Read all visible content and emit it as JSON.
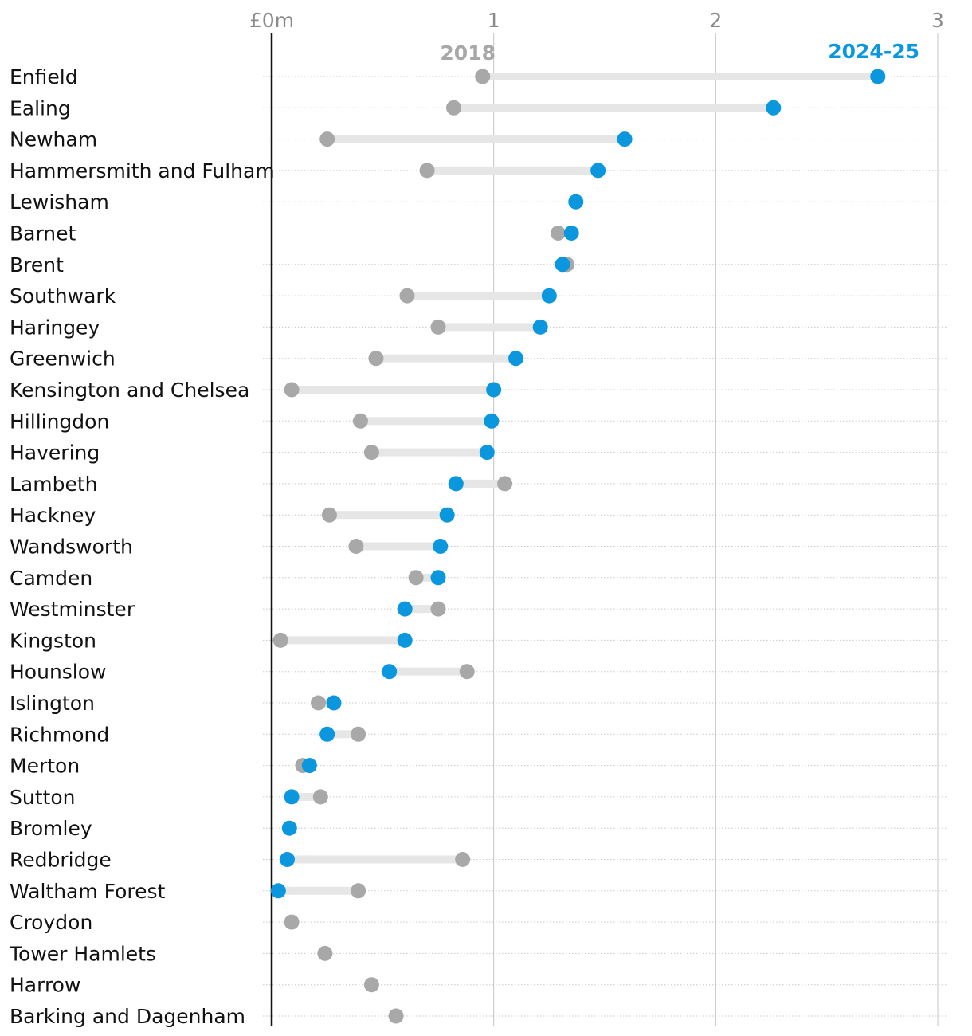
{
  "chart_data": {
    "type": "dumbbell",
    "xlim": [
      0,
      3
    ],
    "x_ticks": [
      {
        "value": 0,
        "label": "£0m"
      },
      {
        "value": 1,
        "label": "1"
      },
      {
        "value": 2,
        "label": "2"
      },
      {
        "value": 3,
        "label": "3"
      }
    ],
    "series": [
      {
        "name": "2018",
        "color": "#a8a8a8"
      },
      {
        "name": "2024-25",
        "color": "#0b97dd"
      }
    ],
    "categories": [
      "Enfield",
      "Ealing",
      "Newham",
      "Hammersmith and Fulham",
      "Lewisham",
      "Barnet",
      "Brent",
      "Southwark",
      "Haringey",
      "Greenwich",
      "Kensington and Chelsea",
      "Hillingdon",
      "Havering",
      "Lambeth",
      "Hackney",
      "Wandsworth",
      "Camden",
      "Westminster",
      "Kingston",
      "Hounslow",
      "Islington",
      "Richmond",
      "Merton",
      "Sutton",
      "Bromley",
      "Redbridge",
      "Waltham Forest",
      "Croydon",
      "Tower Hamlets",
      "Harrow",
      "Barking and Dagenham"
    ],
    "values_2018": [
      0.95,
      0.82,
      0.25,
      0.7,
      null,
      1.29,
      1.33,
      0.61,
      0.75,
      0.47,
      0.09,
      0.4,
      0.45,
      1.05,
      0.26,
      0.38,
      0.65,
      0.75,
      0.04,
      0.88,
      0.21,
      0.39,
      0.14,
      0.22,
      null,
      0.86,
      0.39,
      0.09,
      0.24,
      0.45,
      0.56
    ],
    "values_2024_25": [
      2.73,
      2.26,
      1.59,
      1.47,
      1.37,
      1.35,
      1.31,
      1.25,
      1.21,
      1.1,
      1.0,
      0.99,
      0.97,
      0.83,
      0.79,
      0.76,
      0.75,
      0.6,
      0.6,
      0.53,
      0.28,
      0.25,
      0.17,
      0.09,
      0.08,
      0.07,
      0.03,
      null,
      null,
      null,
      null
    ],
    "grid": true,
    "legend": "top-right"
  }
}
